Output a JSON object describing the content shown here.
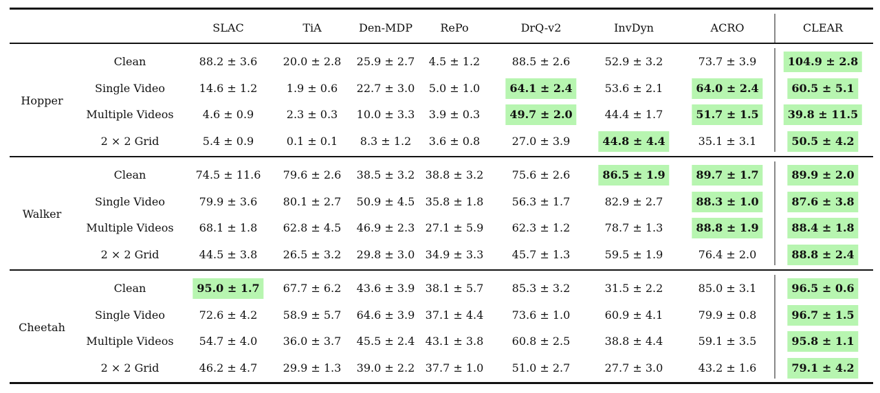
{
  "table": {
    "columns": [
      "SLAC",
      "TiA",
      "Den-MDP",
      "RePo",
      "DrQ-v2",
      "InvDyn",
      "ACRO",
      "CLEAR"
    ],
    "groups": [
      {
        "name": "Hopper",
        "rows": [
          {
            "label": "Clean",
            "cells": [
              {
                "text": "88.2 ± 3.6",
                "best": false
              },
              {
                "text": "20.0 ± 2.8",
                "best": false
              },
              {
                "text": "25.9 ± 2.7",
                "best": false
              },
              {
                "text": "4.5 ± 1.2",
                "best": false
              },
              {
                "text": "88.5 ± 2.6",
                "best": false
              },
              {
                "text": "52.9 ± 3.2",
                "best": false
              },
              {
                "text": "73.7 ± 3.9",
                "best": false
              },
              {
                "text": "104.9 ± 2.8",
                "best": true
              }
            ]
          },
          {
            "label": "Single Video",
            "cells": [
              {
                "text": "14.6 ± 1.2",
                "best": false
              },
              {
                "text": "1.9 ± 0.6",
                "best": false
              },
              {
                "text": "22.7 ± 3.0",
                "best": false
              },
              {
                "text": "5.0 ± 1.0",
                "best": false
              },
              {
                "text": "64.1 ± 2.4",
                "best": true
              },
              {
                "text": "53.6 ± 2.1",
                "best": false
              },
              {
                "text": "64.0 ± 2.4",
                "best": true
              },
              {
                "text": "60.5 ± 5.1",
                "best": true
              }
            ]
          },
          {
            "label": "Multiple Videos",
            "cells": [
              {
                "text": "4.6 ± 0.9",
                "best": false
              },
              {
                "text": "2.3 ± 0.3",
                "best": false
              },
              {
                "text": "10.0 ± 3.3",
                "best": false
              },
              {
                "text": "3.9 ± 0.3",
                "best": false
              },
              {
                "text": "49.7 ± 2.0",
                "best": true
              },
              {
                "text": "44.4 ± 1.7",
                "best": false
              },
              {
                "text": "51.7 ± 1.5",
                "best": true
              },
              {
                "text": "39.8 ± 11.5",
                "best": true
              }
            ]
          },
          {
            "label": "2 × 2 Grid",
            "cells": [
              {
                "text": "5.4 ± 0.9",
                "best": false
              },
              {
                "text": "0.1 ± 0.1",
                "best": false
              },
              {
                "text": "8.3 ± 1.2",
                "best": false
              },
              {
                "text": "3.6 ± 0.8",
                "best": false
              },
              {
                "text": "27.0 ± 3.9",
                "best": false
              },
              {
                "text": "44.8 ± 4.4",
                "best": true
              },
              {
                "text": "35.1 ± 3.1",
                "best": false
              },
              {
                "text": "50.5 ± 4.2",
                "best": true
              }
            ]
          }
        ]
      },
      {
        "name": "Walker",
        "rows": [
          {
            "label": "Clean",
            "cells": [
              {
                "text": "74.5 ± 11.6",
                "best": false
              },
              {
                "text": "79.6 ± 2.6",
                "best": false
              },
              {
                "text": "38.5 ± 3.2",
                "best": false
              },
              {
                "text": "38.8 ± 3.2",
                "best": false
              },
              {
                "text": "75.6 ± 2.6",
                "best": false
              },
              {
                "text": "86.5 ± 1.9",
                "best": true
              },
              {
                "text": "89.7 ± 1.7",
                "best": true
              },
              {
                "text": "89.9 ± 2.0",
                "best": true
              }
            ]
          },
          {
            "label": "Single Video",
            "cells": [
              {
                "text": "79.9 ± 3.6",
                "best": false
              },
              {
                "text": "80.1 ± 2.7",
                "best": false
              },
              {
                "text": "50.9 ± 4.5",
                "best": false
              },
              {
                "text": "35.8 ± 1.8",
                "best": false
              },
              {
                "text": "56.3 ± 1.7",
                "best": false
              },
              {
                "text": "82.9 ± 2.7",
                "best": false
              },
              {
                "text": "88.3 ± 1.0",
                "best": true
              },
              {
                "text": "87.6 ± 3.8",
                "best": true
              }
            ]
          },
          {
            "label": "Multiple Videos",
            "cells": [
              {
                "text": "68.1 ± 1.8",
                "best": false
              },
              {
                "text": "62.8 ± 4.5",
                "best": false
              },
              {
                "text": "46.9 ± 2.3",
                "best": false
              },
              {
                "text": "27.1 ± 5.9",
                "best": false
              },
              {
                "text": "62.3 ± 1.2",
                "best": false
              },
              {
                "text": "78.7 ± 1.3",
                "best": false
              },
              {
                "text": "88.8 ± 1.9",
                "best": true
              },
              {
                "text": "88.4 ± 1.8",
                "best": true
              }
            ]
          },
          {
            "label": "2 × 2 Grid",
            "cells": [
              {
                "text": "44.5 ± 3.8",
                "best": false
              },
              {
                "text": "26.5 ± 3.2",
                "best": false
              },
              {
                "text": "29.8 ± 3.0",
                "best": false
              },
              {
                "text": "34.9 ± 3.3",
                "best": false
              },
              {
                "text": "45.7 ± 1.3",
                "best": false
              },
              {
                "text": "59.5 ± 1.9",
                "best": false
              },
              {
                "text": "76.4 ± 2.0",
                "best": false
              },
              {
                "text": "88.8 ± 2.4",
                "best": true
              }
            ]
          }
        ]
      },
      {
        "name": "Cheetah",
        "rows": [
          {
            "label": "Clean",
            "cells": [
              {
                "text": "95.0 ± 1.7",
                "best": true
              },
              {
                "text": "67.7 ± 6.2",
                "best": false
              },
              {
                "text": "43.6 ± 3.9",
                "best": false
              },
              {
                "text": "38.1 ± 5.7",
                "best": false
              },
              {
                "text": "85.3 ± 3.2",
                "best": false
              },
              {
                "text": "31.5 ± 2.2",
                "best": false
              },
              {
                "text": "85.0 ± 3.1",
                "best": false
              },
              {
                "text": "96.5 ± 0.6",
                "best": true
              }
            ]
          },
          {
            "label": "Single Video",
            "cells": [
              {
                "text": "72.6 ± 4.2",
                "best": false
              },
              {
                "text": "58.9 ± 5.7",
                "best": false
              },
              {
                "text": "64.6 ± 3.9",
                "best": false
              },
              {
                "text": "37.1 ± 4.4",
                "best": false
              },
              {
                "text": "73.6 ± 1.0",
                "best": false
              },
              {
                "text": "60.9 ± 4.1",
                "best": false
              },
              {
                "text": "79.9 ± 0.8",
                "best": false
              },
              {
                "text": "96.7 ± 1.5",
                "best": true
              }
            ]
          },
          {
            "label": "Multiple Videos",
            "cells": [
              {
                "text": "54.7 ± 4.0",
                "best": false
              },
              {
                "text": "36.0 ± 3.7",
                "best": false
              },
              {
                "text": "45.5 ± 2.4",
                "best": false
              },
              {
                "text": "43.1 ± 3.8",
                "best": false
              },
              {
                "text": "60.8 ± 2.5",
                "best": false
              },
              {
                "text": "38.8 ± 4.4",
                "best": false
              },
              {
                "text": "59.1 ± 3.5",
                "best": false
              },
              {
                "text": "95.8 ± 1.1",
                "best": true
              }
            ]
          },
          {
            "label": "2 × 2 Grid",
            "cells": [
              {
                "text": "46.2 ± 4.7",
                "best": false
              },
              {
                "text": "29.9 ± 1.3",
                "best": false
              },
              {
                "text": "39.0 ± 2.2",
                "best": false
              },
              {
                "text": "37.7 ± 1.0",
                "best": false
              },
              {
                "text": "51.0 ± 2.7",
                "best": false
              },
              {
                "text": "27.7 ± 3.0",
                "best": false
              },
              {
                "text": "43.2 ± 1.6",
                "best": false
              },
              {
                "text": "79.1 ± 4.2",
                "best": true
              }
            ]
          }
        ]
      }
    ]
  },
  "colors": {
    "highlight": "#b7f5b0",
    "rule": "#111111",
    "separator": "#888888"
  }
}
